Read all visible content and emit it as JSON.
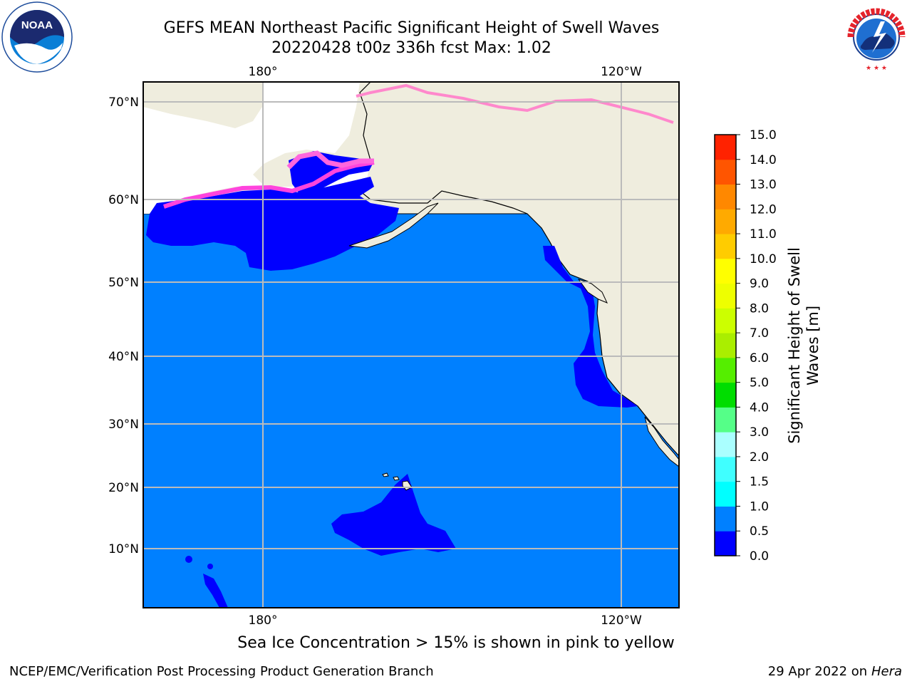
{
  "header": {
    "title_line1": "GEFS MEAN Northeast Pacific Significant Height of Swell Waves",
    "title_line2": "20220428 t00z 336h fcst   Max: 1.02"
  },
  "logos": {
    "left": {
      "name": "NOAA",
      "text": "NOAA",
      "ring_text": "NATIONAL OCEANIC AND ATMOSPHERIC ADMINISTRATION · U.S. DEPARTMENT OF COMMERCE"
    },
    "right": {
      "name": "National Weather Service",
      "ring_text": "NATIONAL WEATHER SERVICE"
    }
  },
  "map": {
    "longitude_labels": [
      "180°",
      "120°W"
    ],
    "latitude_labels": [
      "70°N",
      "60°N",
      "50°N",
      "40°N",
      "30°N",
      "20°N",
      "10°N"
    ],
    "colors": {
      "ocean_0_0_5": "#0000ff",
      "ocean_0_5_1_0": "#0080ff",
      "land": "#efedde",
      "grid": "#bbbbbb",
      "sea_ice": "#ff44dd"
    }
  },
  "colorbar": {
    "label_line1": "Significant Height of Swell",
    "label_line2": "Waves [m]",
    "ticks": [
      "0.0",
      "0.5",
      "1.0",
      "1.5",
      "2.0",
      "3.0",
      "4.0",
      "5.0",
      "6.0",
      "7.0",
      "8.0",
      "9.0",
      "10.0",
      "11.0",
      "12.0",
      "13.0",
      "14.0",
      "15.0"
    ],
    "colors": [
      "#0000ff",
      "#0080ff",
      "#00ffff",
      "#40ffff",
      "#aaffff",
      "#55ff88",
      "#00dd00",
      "#55ee00",
      "#aaee00",
      "#ccff00",
      "#eeff00",
      "#ffff00",
      "#ffcc00",
      "#ffaa00",
      "#ff8800",
      "#ff5500",
      "#ff2200",
      "#ff0000"
    ]
  },
  "notes": {
    "sea_ice": "Sea Ice Concentration > 15% is shown in pink to yellow"
  },
  "footer": {
    "left": "NCEP/EMC/Verification Post Processing Product Generation Branch",
    "right_date": "29 Apr 2022 on ",
    "right_host": "Hera"
  }
}
